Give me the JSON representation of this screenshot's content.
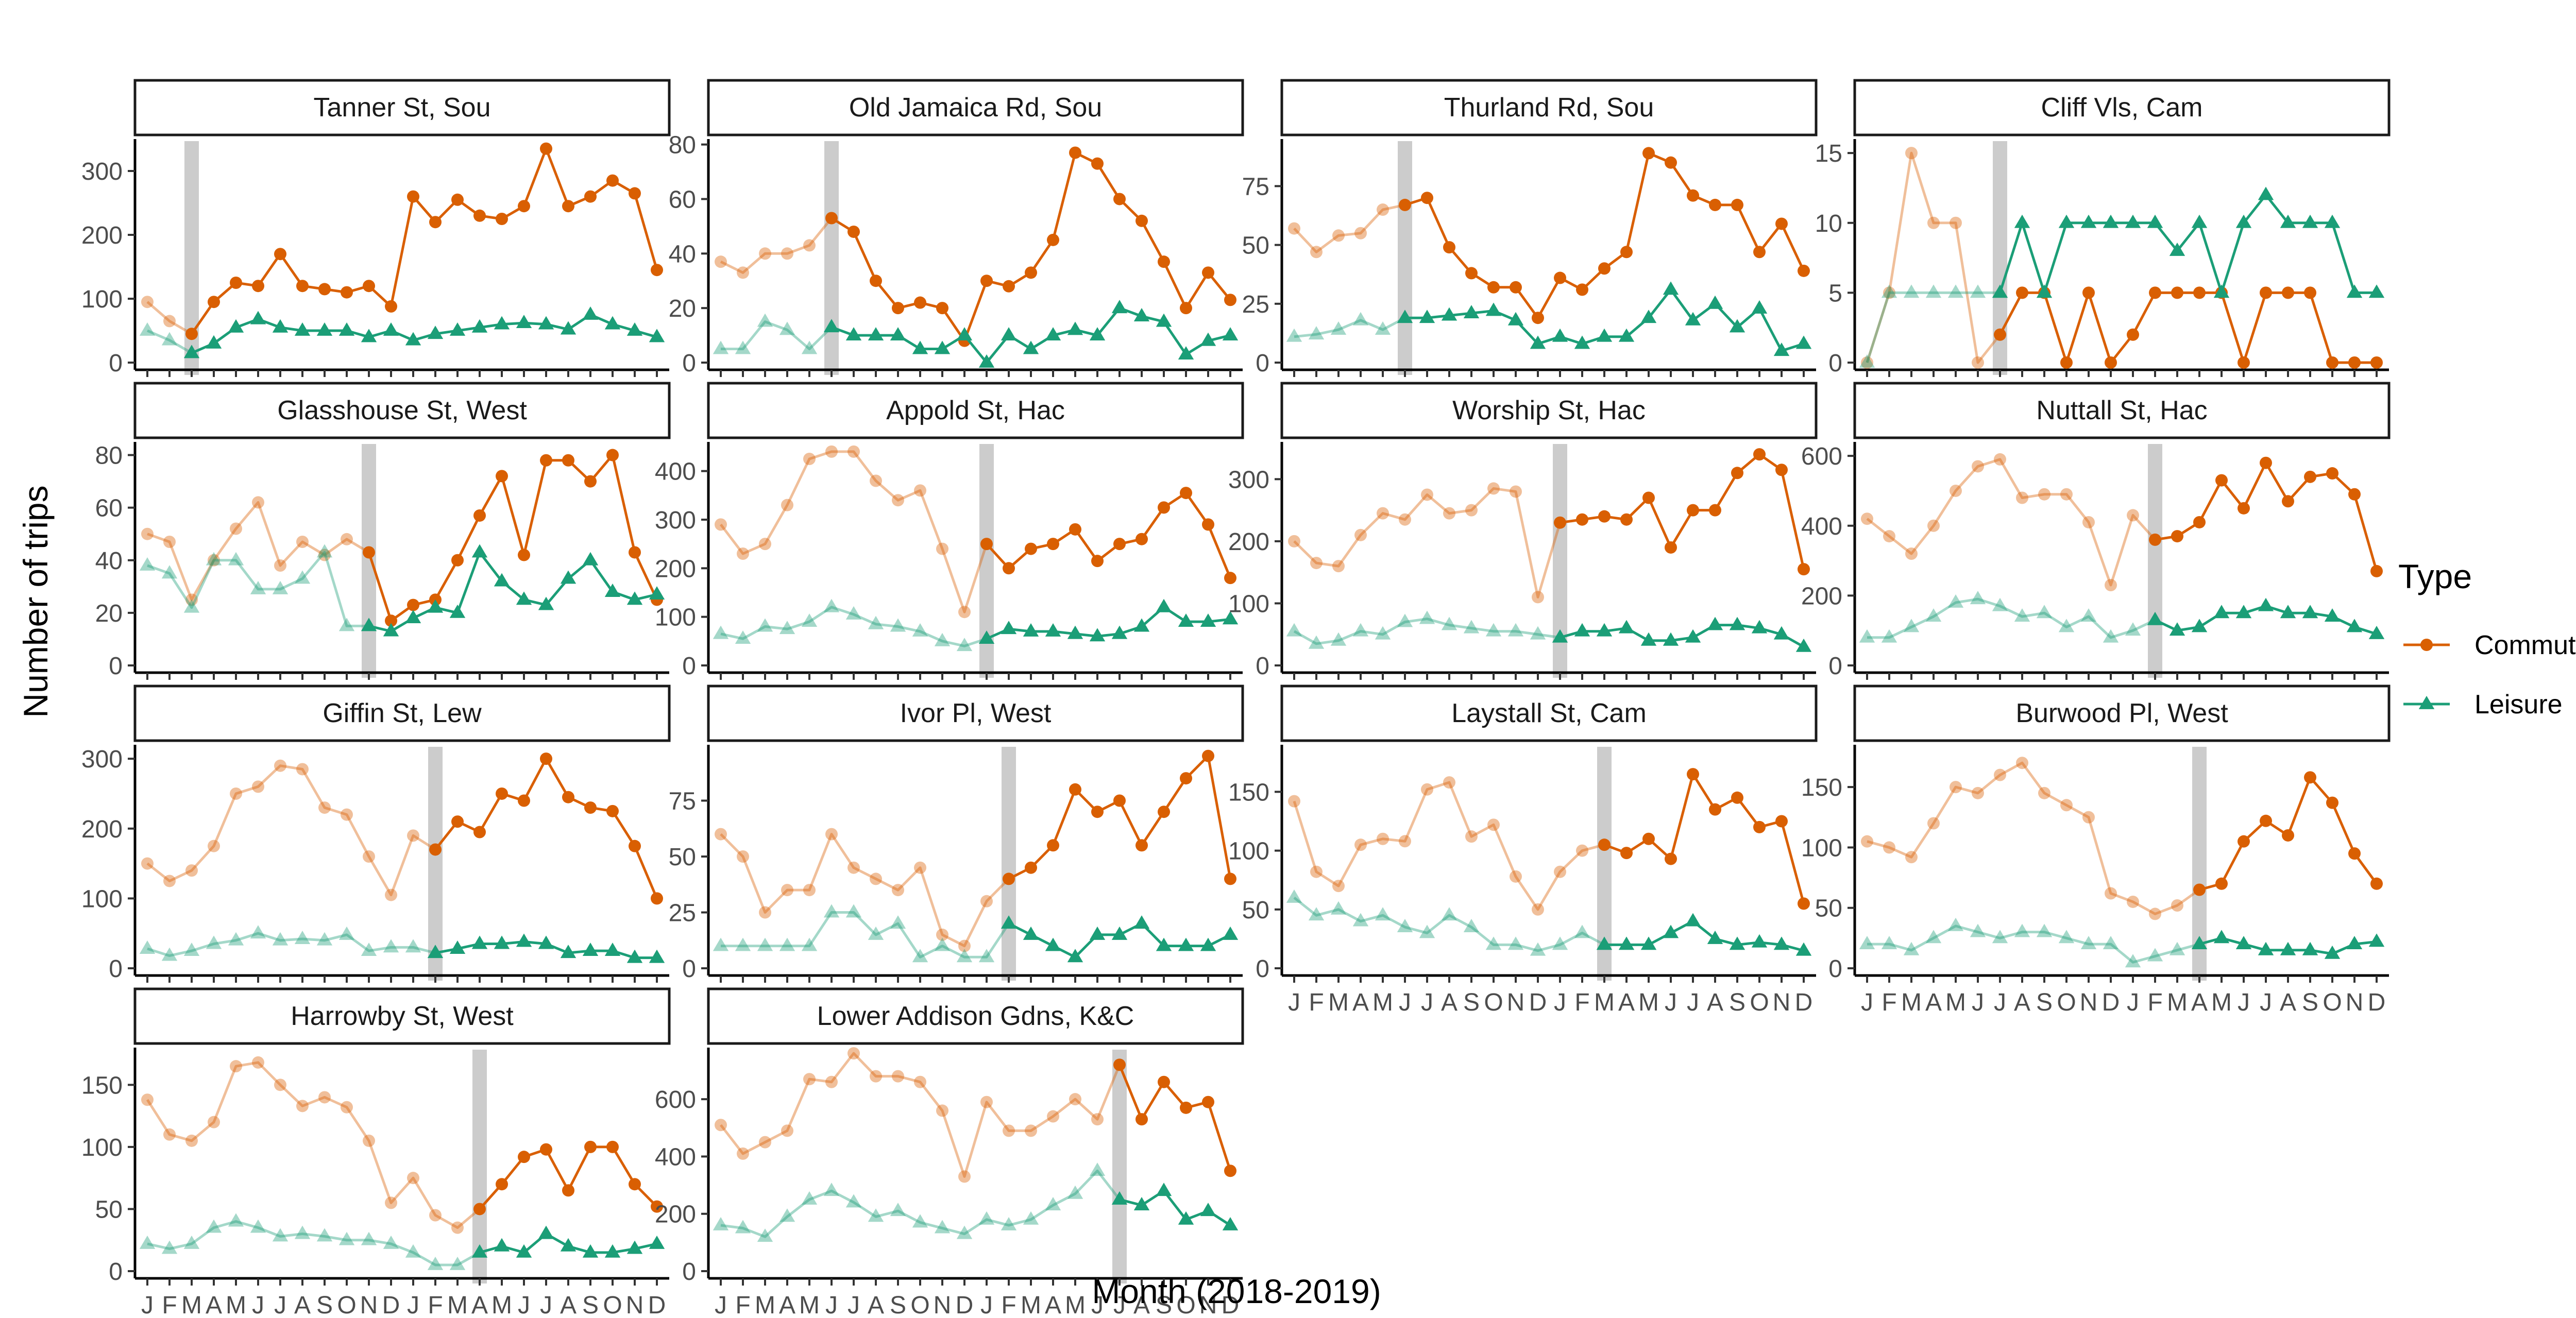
{
  "chart_data": {
    "type": "line",
    "xlabel": "Month (2018-2019)",
    "ylabel": "Number of trips",
    "legend": {
      "title": "Type",
      "position": "right"
    },
    "month_letters": [
      "J",
      "F",
      "M",
      "A",
      "M",
      "J",
      "J",
      "A",
      "S",
      "O",
      "N",
      "D",
      "J",
      "F",
      "M",
      "A",
      "M",
      "J",
      "J",
      "A",
      "S",
      "O",
      "N",
      "D"
    ],
    "months": [
      "2018-01",
      "2018-02",
      "2018-03",
      "2018-04",
      "2018-05",
      "2018-06",
      "2018-07",
      "2018-08",
      "2018-09",
      "2018-10",
      "2018-11",
      "2018-12",
      "2019-01",
      "2019-02",
      "2019-03",
      "2019-04",
      "2019-05",
      "2019-06",
      "2019-07",
      "2019-08",
      "2019-09",
      "2019-10",
      "2019-11",
      "2019-12"
    ],
    "series_styles": [
      {
        "name": "Commute",
        "color": "#D95F02",
        "marker": "circle"
      },
      {
        "name": "Leisure",
        "color": "#1B9E77",
        "marker": "triangle"
      }
    ],
    "panels": [
      {
        "title": "Tanner St, Sou",
        "intervention_month": "2018-03",
        "ylim": [
          0,
          350
        ],
        "yticks": [
          0,
          100,
          200,
          300
        ],
        "series": [
          {
            "name": "Commute",
            "values": [
              95,
              65,
              45,
              95,
              125,
              120,
              170,
              120,
              115,
              110,
              120,
              88,
              260,
              220,
              255,
              230,
              225,
              245,
              335,
              245,
              260,
              285,
              265,
              145
            ]
          },
          {
            "name": "Leisure",
            "values": [
              50,
              35,
              15,
              30,
              55,
              68,
              55,
              50,
              50,
              50,
              40,
              50,
              35,
              45,
              50,
              55,
              60,
              62,
              60,
              52,
              75,
              60,
              50,
              40
            ]
          }
        ]
      },
      {
        "title": "Old Jamaica Rd, Sou",
        "intervention_month": "2018-06",
        "ylim": [
          0,
          82
        ],
        "yticks": [
          0,
          20,
          40,
          60,
          80
        ],
        "series": [
          {
            "name": "Commute",
            "values": [
              37,
              33,
              40,
              40,
              43,
              53,
              48,
              30,
              20,
              22,
              20,
              8,
              30,
              28,
              33,
              45,
              77,
              73,
              60,
              52,
              37,
              20,
              33,
              23
            ]
          },
          {
            "name": "Leisure",
            "values": [
              5,
              5,
              15,
              12,
              5,
              13,
              10,
              10,
              10,
              5,
              5,
              10,
              0,
              10,
              5,
              10,
              12,
              10,
              20,
              17,
              15,
              3,
              8,
              10
            ]
          }
        ]
      },
      {
        "title": "Thurland Rd, Sou",
        "intervention_month": "2018-06",
        "ylim": [
          0,
          95
        ],
        "yticks": [
          0,
          25,
          50,
          75
        ],
        "series": [
          {
            "name": "Commute",
            "values": [
              57,
              47,
              54,
              55,
              65,
              67,
              70,
              49,
              38,
              32,
              32,
              19,
              36,
              31,
              40,
              47,
              89,
              85,
              71,
              67,
              67,
              47,
              59,
              39
            ]
          },
          {
            "name": "Leisure",
            "values": [
              11,
              12,
              14,
              18,
              14,
              19,
              19,
              20,
              21,
              22,
              18,
              8,
              11,
              8,
              11,
              11,
              19,
              31,
              18,
              25,
              15,
              23,
              5,
              8
            ]
          }
        ]
      },
      {
        "title": "Cliff Vls, Cam",
        "intervention_month": "2018-07",
        "ylim": [
          0,
          16
        ],
        "yticks": [
          0,
          5,
          10,
          15
        ],
        "series": [
          {
            "name": "Commute",
            "values": [
              0,
              5,
              15,
              10,
              10,
              0,
              2,
              5,
              5,
              0,
              5,
              0,
              2,
              5,
              5,
              5,
              5,
              0,
              5,
              5,
              5,
              0,
              0,
              0
            ]
          },
          {
            "name": "Leisure",
            "values": [
              0,
              5,
              5,
              5,
              5,
              5,
              5,
              10,
              5,
              10,
              10,
              10,
              10,
              10,
              8,
              10,
              5,
              10,
              12,
              10,
              10,
              10,
              5,
              5
            ]
          }
        ]
      },
      {
        "title": "Glasshouse St, West",
        "intervention_month": "2018-11",
        "ylim": [
          0,
          85
        ],
        "yticks": [
          0,
          20,
          40,
          60,
          80
        ],
        "series": [
          {
            "name": "Commute",
            "values": [
              50,
              47,
              25,
              40,
              52,
              62,
              38,
              47,
              42,
              48,
              43,
              17,
              23,
              25,
              40,
              57,
              72,
              42,
              78,
              78,
              70,
              80,
              43,
              25
            ]
          },
          {
            "name": "Leisure",
            "values": [
              38,
              35,
              22,
              40,
              40,
              29,
              29,
              33,
              43,
              15,
              15,
              13,
              18,
              22,
              20,
              43,
              32,
              25,
              23,
              33,
              40,
              28,
              25,
              27
            ]
          }
        ]
      },
      {
        "title": "Appold St, Hac",
        "intervention_month": "2019-01",
        "ylim": [
          0,
          460
        ],
        "yticks": [
          0,
          100,
          200,
          300,
          400
        ],
        "series": [
          {
            "name": "Commute",
            "values": [
              290,
              230,
              250,
              330,
              425,
              440,
              440,
              380,
              340,
              360,
              240,
              110,
              250,
              200,
              240,
              250,
              280,
              215,
              250,
              260,
              325,
              355,
              290,
              180
            ]
          },
          {
            "name": "Leisure",
            "values": [
              65,
              55,
              80,
              75,
              90,
              120,
              105,
              85,
              80,
              70,
              50,
              40,
              55,
              75,
              70,
              70,
              65,
              60,
              65,
              80,
              120,
              90,
              90,
              95
            ]
          }
        ]
      },
      {
        "title": "Worship St, Hac",
        "intervention_month": "2019-01",
        "ylim": [
          0,
          360
        ],
        "yticks": [
          0,
          100,
          200,
          300
        ],
        "series": [
          {
            "name": "Commute",
            "values": [
              200,
              165,
              160,
              210,
              245,
              235,
              275,
              245,
              250,
              285,
              280,
              110,
              230,
              235,
              240,
              235,
              270,
              190,
              250,
              250,
              310,
              340,
              315,
              155
            ]
          },
          {
            "name": "Leisure",
            "values": [
              55,
              35,
              40,
              55,
              50,
              70,
              75,
              65,
              60,
              55,
              55,
              50,
              45,
              55,
              55,
              60,
              40,
              40,
              45,
              65,
              65,
              60,
              50,
              30
            ]
          }
        ]
      },
      {
        "title": "Nuttall St, Hac",
        "intervention_month": "2019-02",
        "ylim": [
          0,
          640
        ],
        "yticks": [
          0,
          200,
          400,
          600
        ],
        "series": [
          {
            "name": "Commute",
            "values": [
              420,
              370,
              320,
              400,
              500,
              570,
              590,
              480,
              490,
              490,
              410,
              230,
              430,
              360,
              370,
              410,
              530,
              450,
              580,
              470,
              540,
              550,
              490,
              270
            ]
          },
          {
            "name": "Leisure",
            "values": [
              80,
              80,
              110,
              140,
              180,
              190,
              170,
              140,
              150,
              110,
              140,
              80,
              100,
              130,
              100,
              110,
              150,
              150,
              170,
              150,
              150,
              140,
              110,
              90
            ]
          }
        ]
      },
      {
        "title": "Giffin St, Lew",
        "intervention_month": "2019-02",
        "ylim": [
          0,
          320
        ],
        "yticks": [
          0,
          100,
          200,
          300
        ],
        "series": [
          {
            "name": "Commute",
            "values": [
              150,
              125,
              140,
              175,
              250,
              260,
              290,
              285,
              230,
              220,
              160,
              105,
              190,
              170,
              210,
              195,
              250,
              240,
              300,
              245,
              230,
              225,
              175,
              100
            ]
          },
          {
            "name": "Leisure",
            "values": [
              28,
              18,
              25,
              35,
              40,
              50,
              40,
              42,
              40,
              48,
              25,
              30,
              30,
              22,
              28,
              35,
              35,
              38,
              35,
              22,
              25,
              25,
              15,
              15
            ]
          }
        ]
      },
      {
        "title": "Ivor Pl, West",
        "intervention_month": "2019-02",
        "ylim": [
          0,
          100
        ],
        "yticks": [
          0,
          25,
          50,
          75
        ],
        "series": [
          {
            "name": "Commute",
            "values": [
              60,
              50,
              25,
              35,
              35,
              60,
              45,
              40,
              35,
              45,
              15,
              10,
              30,
              40,
              45,
              55,
              80,
              70,
              75,
              55,
              70,
              85,
              95,
              40
            ]
          },
          {
            "name": "Leisure",
            "values": [
              10,
              10,
              10,
              10,
              10,
              25,
              25,
              15,
              20,
              5,
              10,
              5,
              5,
              20,
              15,
              10,
              5,
              15,
              15,
              20,
              10,
              10,
              10,
              15
            ]
          }
        ]
      },
      {
        "title": "Laystall St, Cam",
        "intervention_month": "2019-03",
        "ylim": [
          0,
          190
        ],
        "yticks": [
          0,
          50,
          100,
          150
        ],
        "series": [
          {
            "name": "Commute",
            "values": [
              142,
              82,
              70,
              105,
              110,
              108,
              152,
              158,
              112,
              122,
              78,
              50,
              82,
              100,
              105,
              98,
              110,
              93,
              165,
              135,
              145,
              120,
              125,
              55
            ]
          },
          {
            "name": "Leisure",
            "values": [
              60,
              45,
              50,
              40,
              45,
              35,
              30,
              45,
              35,
              20,
              20,
              15,
              20,
              30,
              20,
              20,
              20,
              30,
              40,
              25,
              20,
              22,
              20,
              15
            ]
          }
        ]
      },
      {
        "title": "Burwood Pl, West",
        "intervention_month": "2019-04",
        "ylim": [
          0,
          185
        ],
        "yticks": [
          0,
          50,
          100,
          150
        ],
        "series": [
          {
            "name": "Commute",
            "values": [
              105,
              100,
              92,
              120,
              150,
              145,
              160,
              170,
              145,
              135,
              125,
              62,
              55,
              45,
              52,
              65,
              70,
              105,
              122,
              110,
              158,
              137,
              95,
              70
            ]
          },
          {
            "name": "Leisure",
            "values": [
              20,
              20,
              15,
              25,
              35,
              30,
              25,
              30,
              30,
              25,
              20,
              20,
              5,
              10,
              15,
              20,
              25,
              20,
              15,
              15,
              15,
              12,
              20,
              22
            ]
          }
        ]
      },
      {
        "title": "Harrowby St, West",
        "intervention_month": "2019-04",
        "ylim": [
          0,
          180
        ],
        "yticks": [
          0,
          50,
          100,
          150
        ],
        "series": [
          {
            "name": "Commute",
            "values": [
              138,
              110,
              105,
              120,
              165,
              168,
              150,
              133,
              140,
              132,
              105,
              55,
              75,
              45,
              35,
              50,
              70,
              92,
              98,
              65,
              100,
              100,
              70,
              52
            ]
          },
          {
            "name": "Leisure",
            "values": [
              22,
              18,
              22,
              35,
              40,
              35,
              28,
              30,
              28,
              25,
              25,
              22,
              15,
              5,
              5,
              15,
              20,
              15,
              30,
              20,
              15,
              15,
              18,
              22
            ]
          }
        ]
      },
      {
        "title": "Lower Addison Gdns, K&C",
        "intervention_month": "2019-07",
        "ylim": [
          0,
          780
        ],
        "yticks": [
          0,
          200,
          400,
          600
        ],
        "series": [
          {
            "name": "Commute",
            "values": [
              510,
              410,
              450,
              490,
              670,
              660,
              760,
              680,
              680,
              660,
              560,
              330,
              590,
              490,
              490,
              540,
              600,
              530,
              720,
              530,
              660,
              570,
              590,
              350
            ]
          },
          {
            "name": "Leisure",
            "values": [
              160,
              150,
              120,
              190,
              250,
              280,
              240,
              190,
              210,
              170,
              150,
              130,
              180,
              160,
              180,
              230,
              270,
              350,
              250,
              230,
              280,
              180,
              210,
              160
            ]
          }
        ]
      }
    ]
  }
}
